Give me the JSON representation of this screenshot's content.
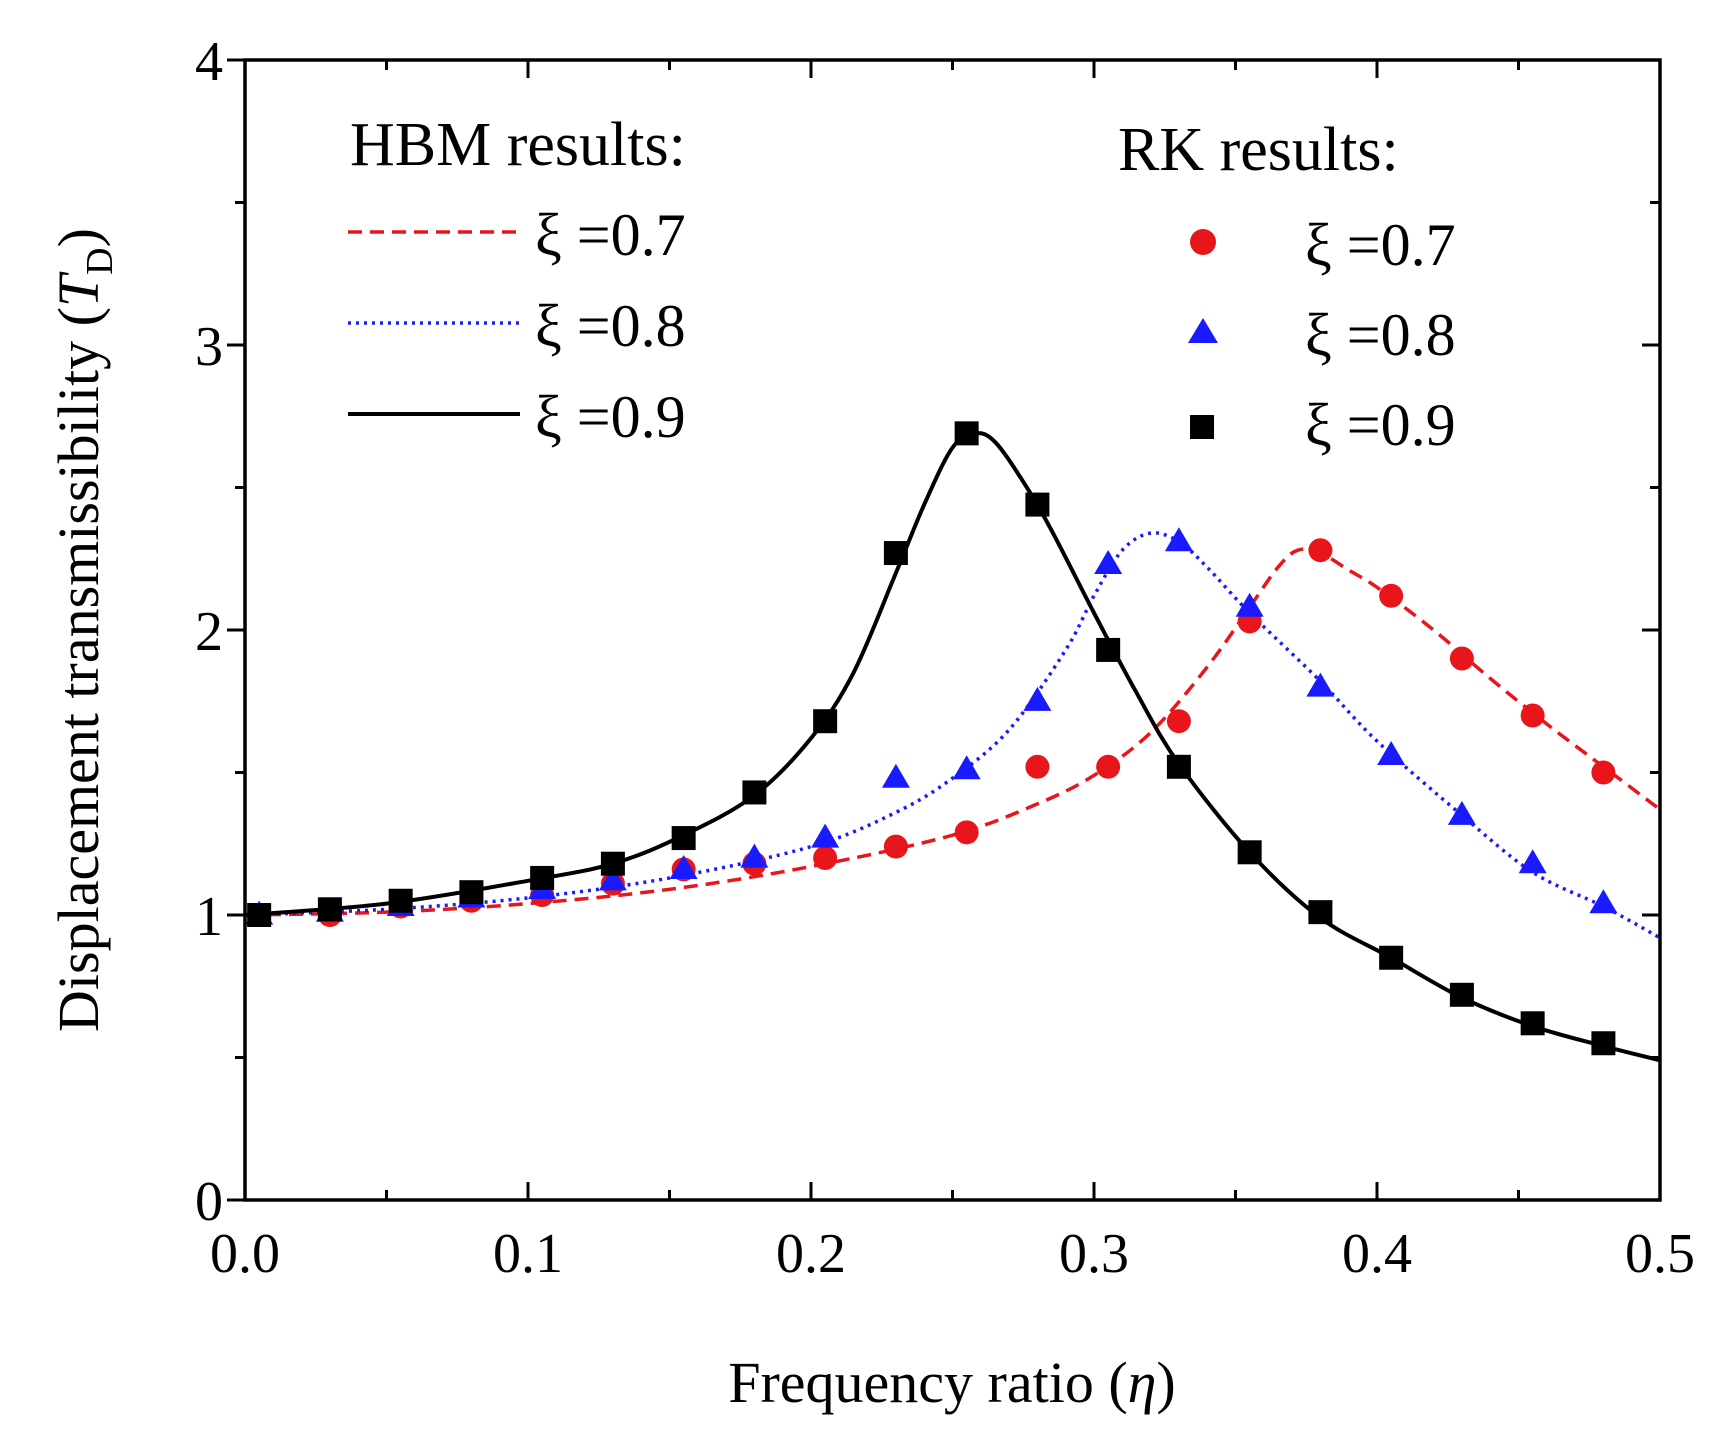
{
  "chart_data": {
    "type": "line",
    "title": "",
    "xlabel": "Frequency ratio (η)",
    "xlabel_parts": {
      "main": "Frequency ratio (",
      "sym": "η",
      "close": ")"
    },
    "ylabel": "Displacement transmissibility (T_D)",
    "ylabel_parts": {
      "main": "Displacement transmissibility (",
      "sym": "T",
      "sub": "D",
      "close": ")"
    },
    "xlim": [
      0.0,
      0.5
    ],
    "ylim": [
      0,
      4
    ],
    "xticks": [
      0.0,
      0.1,
      0.2,
      0.3,
      0.4,
      0.5
    ],
    "xtick_labels": [
      "0.0",
      "0.1",
      "0.2",
      "0.3",
      "0.4",
      "0.5"
    ],
    "yticks": [
      0,
      1,
      2,
      3,
      4
    ],
    "ytick_labels": [
      "0",
      "1",
      "2",
      "3",
      "4"
    ],
    "x_minor_step": 0.05,
    "y_minor_step": 0.5,
    "grid": false,
    "legend_hbm": {
      "title": "HBM results:",
      "location": "top-left",
      "entries": [
        {
          "label": "ξ =0.7",
          "series": "hbm_07"
        },
        {
          "label": "ξ =0.8",
          "series": "hbm_08"
        },
        {
          "label": "ξ =0.9",
          "series": "hbm_09"
        }
      ]
    },
    "legend_rk": {
      "title": "RK results:",
      "location": "top-right",
      "entries": [
        {
          "label": "ξ =0.7",
          "series": "rk_07"
        },
        {
          "label": "ξ =0.8",
          "series": "rk_08"
        },
        {
          "label": "ξ =0.9",
          "series": "rk_09"
        }
      ]
    },
    "series": [
      {
        "id": "hbm_07",
        "name": "HBM ξ=0.7",
        "kind": "line",
        "style": "dashed",
        "color": "#e8161b",
        "x": [
          0.0,
          0.05,
          0.1,
          0.15,
          0.2,
          0.25,
          0.28,
          0.3,
          0.32,
          0.34,
          0.355,
          0.365,
          0.372,
          0.38,
          0.39,
          0.4,
          0.42,
          0.44,
          0.46,
          0.48,
          0.5
        ],
        "y": [
          1.0,
          1.01,
          1.04,
          1.09,
          1.17,
          1.28,
          1.39,
          1.49,
          1.64,
          1.87,
          2.08,
          2.22,
          2.28,
          2.27,
          2.21,
          2.15,
          2.0,
          1.83,
          1.67,
          1.52,
          1.37
        ]
      },
      {
        "id": "hbm_08",
        "name": "HBM ξ=0.8",
        "kind": "line",
        "style": "dotted",
        "color": "#1a1aff",
        "x": [
          0.0,
          0.05,
          0.1,
          0.15,
          0.2,
          0.23,
          0.25,
          0.27,
          0.29,
          0.3,
          0.31,
          0.32,
          0.33,
          0.34,
          0.355,
          0.38,
          0.4,
          0.43,
          0.455,
          0.48,
          0.5
        ],
        "y": [
          1.0,
          1.02,
          1.06,
          1.13,
          1.24,
          1.36,
          1.48,
          1.65,
          1.93,
          2.12,
          2.28,
          2.34,
          2.31,
          2.22,
          2.06,
          1.82,
          1.61,
          1.35,
          1.15,
          1.03,
          0.92
        ]
      },
      {
        "id": "hbm_09",
        "name": "HBM ξ=0.9",
        "kind": "line",
        "style": "solid",
        "color": "#000000",
        "x": [
          0.0,
          0.05,
          0.1,
          0.13,
          0.155,
          0.18,
          0.2,
          0.215,
          0.23,
          0.24,
          0.25,
          0.258,
          0.265,
          0.275,
          0.285,
          0.3,
          0.315,
          0.33,
          0.355,
          0.38,
          0.405,
          0.43,
          0.455,
          0.48,
          0.5
        ],
        "y": [
          1.0,
          1.04,
          1.12,
          1.18,
          1.28,
          1.42,
          1.62,
          1.85,
          2.2,
          2.44,
          2.64,
          2.69,
          2.66,
          2.52,
          2.35,
          2.06,
          1.78,
          1.53,
          1.22,
          0.99,
          0.85,
          0.71,
          0.61,
          0.54,
          0.49
        ]
      },
      {
        "id": "rk_07",
        "name": "RK ξ=0.7",
        "kind": "markers",
        "marker": "circle",
        "color": "#e8161b",
        "x": [
          0.005,
          0.03,
          0.055,
          0.08,
          0.105,
          0.13,
          0.155,
          0.18,
          0.205,
          0.23,
          0.255,
          0.28,
          0.305,
          0.33,
          0.355,
          0.38,
          0.405,
          0.43,
          0.455,
          0.48
        ],
        "y": [
          1.0,
          1.0,
          1.03,
          1.05,
          1.07,
          1.11,
          1.16,
          1.18,
          1.2,
          1.24,
          1.29,
          1.52,
          1.52,
          1.68,
          2.03,
          2.28,
          2.12,
          1.9,
          1.7,
          1.5
        ]
      },
      {
        "id": "rk_08",
        "name": "RK ξ=0.8",
        "kind": "markers",
        "marker": "triangle",
        "color": "#1a1aff",
        "x": [
          0.005,
          0.03,
          0.055,
          0.08,
          0.105,
          0.13,
          0.155,
          0.18,
          0.205,
          0.23,
          0.255,
          0.28,
          0.305,
          0.33,
          0.355,
          0.38,
          0.405,
          0.43,
          0.455,
          0.48
        ],
        "y": [
          1.0,
          1.01,
          1.03,
          1.06,
          1.09,
          1.12,
          1.16,
          1.2,
          1.27,
          1.48,
          1.51,
          1.75,
          2.23,
          2.31,
          2.08,
          1.8,
          1.56,
          1.35,
          1.18,
          1.04
        ]
      },
      {
        "id": "rk_09",
        "name": "RK ξ=0.9",
        "kind": "markers",
        "marker": "square",
        "color": "#000000",
        "x": [
          0.005,
          0.03,
          0.055,
          0.08,
          0.105,
          0.13,
          0.155,
          0.18,
          0.205,
          0.23,
          0.255,
          0.28,
          0.305,
          0.33,
          0.355,
          0.38,
          0.405,
          0.43,
          0.455,
          0.48
        ],
        "y": [
          1.0,
          1.02,
          1.05,
          1.08,
          1.13,
          1.18,
          1.27,
          1.43,
          1.68,
          2.27,
          2.69,
          2.44,
          1.93,
          1.52,
          1.22,
          1.01,
          0.85,
          0.72,
          0.62,
          0.55
        ]
      }
    ]
  }
}
